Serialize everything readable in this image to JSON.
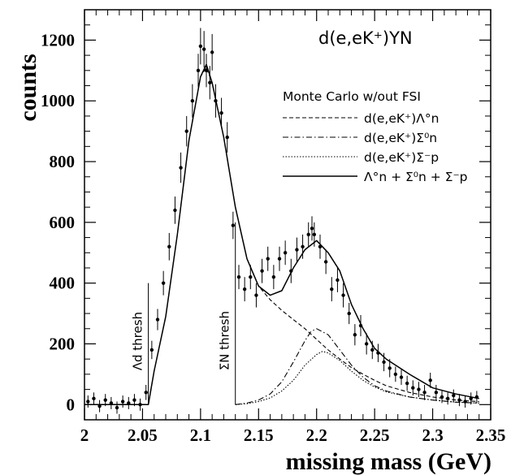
{
  "chart_data": {
    "type": "line",
    "title": "d(e,eK⁺)YN",
    "xlabel": "missing mass (GeV)",
    "ylabel": "counts",
    "xlim": [
      2.0,
      2.35
    ],
    "ylim": [
      -50,
      1300
    ],
    "x_ticks": [
      2,
      2.05,
      2.1,
      2.15,
      2.2,
      2.25,
      2.3,
      2.35
    ],
    "x_tick_labels": [
      "2",
      "2.05",
      "2.1",
      "2.15",
      "2.2",
      "2.25",
      "2.3",
      "2.35"
    ],
    "y_ticks": [
      0,
      200,
      400,
      600,
      800,
      1000,
      1200
    ],
    "y_tick_labels": [
      "0",
      "200",
      "400",
      "600",
      "800",
      "1000",
      "1200"
    ],
    "legend_header": "Monte Carlo w/out FSI",
    "legend_position": "top-right",
    "series": [
      {
        "name": "d(e,eK⁺)Λ°n",
        "style": "dashed",
        "x": [
          2.055,
          2.06,
          2.07,
          2.08,
          2.09,
          2.1,
          2.105,
          2.11,
          2.12,
          2.13,
          2.14,
          2.15,
          2.16,
          2.17,
          2.18,
          2.19,
          2.2,
          2.21,
          2.22,
          2.23,
          2.24,
          2.25,
          2.26,
          2.28,
          2.3,
          2.32,
          2.34
        ],
        "y": [
          0,
          110,
          290,
          560,
          870,
          1080,
          1110,
          1060,
          880,
          650,
          480,
          390,
          345,
          310,
          280,
          250,
          215,
          180,
          150,
          122,
          100,
          80,
          62,
          40,
          25,
          15,
          10
        ]
      },
      {
        "name": "d(e,eK⁺)Σ⁰n",
        "style": "dashdot",
        "x": [
          2.13,
          2.14,
          2.15,
          2.16,
          2.17,
          2.18,
          2.19,
          2.195,
          2.2,
          2.21,
          2.22,
          2.23,
          2.24,
          2.25,
          2.26,
          2.28,
          2.3,
          2.32,
          2.34
        ],
        "y": [
          0,
          5,
          15,
          35,
          75,
          140,
          210,
          240,
          250,
          230,
          180,
          130,
          90,
          62,
          45,
          25,
          15,
          8,
          5
        ]
      },
      {
        "name": "d(e,eK⁺)Σ⁻p",
        "style": "dotted",
        "x": [
          2.13,
          2.14,
          2.15,
          2.16,
          2.17,
          2.18,
          2.19,
          2.2,
          2.205,
          2.21,
          2.22,
          2.23,
          2.24,
          2.25,
          2.26,
          2.28,
          2.3,
          2.32,
          2.34
        ],
        "y": [
          0,
          3,
          10,
          22,
          45,
          80,
          130,
          165,
          175,
          170,
          145,
          110,
          80,
          58,
          42,
          25,
          15,
          8,
          5
        ]
      },
      {
        "name": "Λ°n + Σ⁰n + Σ⁻p",
        "style": "solid",
        "x": [
          2.0,
          2.055,
          2.06,
          2.07,
          2.08,
          2.09,
          2.1,
          2.105,
          2.11,
          2.12,
          2.13,
          2.14,
          2.15,
          2.16,
          2.17,
          2.18,
          2.19,
          2.2,
          2.21,
          2.22,
          2.23,
          2.24,
          2.25,
          2.26,
          2.28,
          2.3,
          2.32,
          2.34
        ],
        "y": [
          0,
          0,
          110,
          290,
          560,
          870,
          1080,
          1120,
          1060,
          880,
          650,
          480,
          390,
          360,
          375,
          450,
          510,
          540,
          500,
          440,
          330,
          250,
          185,
          150,
          100,
          55,
          35,
          20
        ]
      }
    ],
    "data_points": {
      "name": "data",
      "x": [
        2.003,
        2.008,
        2.013,
        2.018,
        2.023,
        2.028,
        2.033,
        2.038,
        2.043,
        2.048,
        2.053,
        2.058,
        2.063,
        2.068,
        2.073,
        2.078,
        2.083,
        2.088,
        2.093,
        2.098,
        2.1,
        2.103,
        2.105,
        2.108,
        2.11,
        2.113,
        2.118,
        2.123,
        2.128,
        2.133,
        2.138,
        2.143,
        2.148,
        2.153,
        2.158,
        2.163,
        2.168,
        2.173,
        2.178,
        2.183,
        2.188,
        2.193,
        2.196,
        2.198,
        2.203,
        2.208,
        2.213,
        2.218,
        2.223,
        2.228,
        2.233,
        2.238,
        2.243,
        2.248,
        2.253,
        2.258,
        2.263,
        2.268,
        2.273,
        2.278,
        2.283,
        2.288,
        2.293,
        2.298,
        2.303,
        2.308,
        2.313,
        2.318,
        2.323,
        2.328,
        2.333,
        2.338
      ],
      "y": [
        10,
        20,
        -5,
        15,
        5,
        -10,
        10,
        5,
        15,
        0,
        40,
        180,
        280,
        400,
        520,
        640,
        780,
        900,
        1000,
        1100,
        1180,
        1170,
        1100,
        1060,
        1160,
        1000,
        960,
        880,
        590,
        420,
        380,
        420,
        360,
        440,
        480,
        420,
        480,
        500,
        440,
        510,
        520,
        560,
        580,
        560,
        520,
        470,
        380,
        410,
        360,
        300,
        230,
        260,
        200,
        180,
        170,
        140,
        120,
        100,
        90,
        70,
        55,
        50,
        40,
        80,
        40,
        25,
        20,
        30,
        15,
        10,
        20,
        25
      ],
      "err": [
        20,
        20,
        20,
        20,
        20,
        20,
        20,
        20,
        20,
        20,
        25,
        30,
        35,
        40,
        45,
        45,
        50,
        50,
        55,
        55,
        60,
        60,
        55,
        55,
        60,
        55,
        50,
        50,
        45,
        40,
        40,
        40,
        40,
        40,
        40,
        40,
        40,
        40,
        40,
        40,
        40,
        40,
        40,
        40,
        40,
        40,
        40,
        40,
        40,
        35,
        35,
        35,
        35,
        30,
        30,
        30,
        30,
        25,
        25,
        25,
        25,
        25,
        25,
        25,
        25,
        20,
        20,
        20,
        20,
        20,
        20,
        20
      ]
    },
    "thresholds": [
      {
        "label": "Λd thresh",
        "x": 2.055,
        "y_top": 400
      },
      {
        "label": "ΣN thresh",
        "x": 2.13,
        "y_top": 600
      }
    ]
  }
}
